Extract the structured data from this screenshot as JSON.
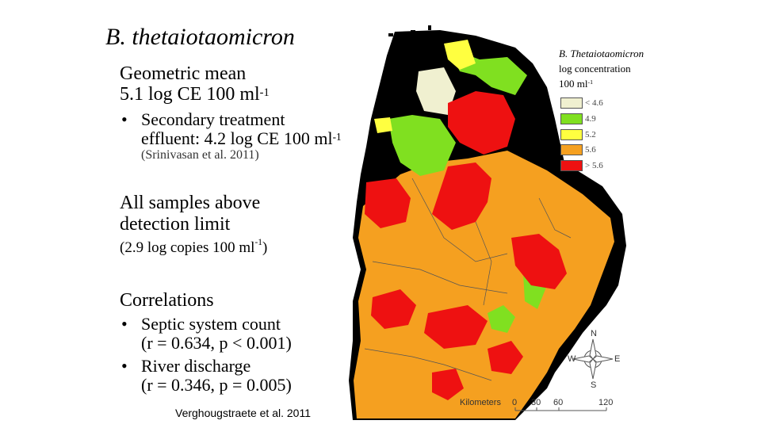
{
  "title": "B. thetaiotaomicron",
  "geomean": {
    "line1": "Geometric mean",
    "line2_pre": "5.1 log CE 100 ml",
    "line2_sup": "-1"
  },
  "secondary": {
    "bullet": "•",
    "line1": "Secondary treatment",
    "line2_pre": "effluent: 4.2 log CE 100 ml",
    "line2_sup": "-1",
    "ref": "(Srinivasan et al. 2011)"
  },
  "detection": {
    "line1": "All samples above",
    "line2": "detection limit",
    "note_pre": "(2.9 log copies 100 ml",
    "note_sup": "-1",
    "note_post": ")"
  },
  "correlations": {
    "heading": "Correlations",
    "items": [
      {
        "bullet": "•",
        "label": "Septic system count",
        "stat": "(r = 0.634, p < 0.001)"
      },
      {
        "bullet": "•",
        "label": "River discharge",
        "stat": "(r = 0.346, p = 0.005)"
      }
    ]
  },
  "citation": "Verghougstraete et al. 2011",
  "legend": {
    "title_line1": "B. Thetaiotaomicron",
    "title_line2": "log concentration",
    "title_line3_pre": "100 ml",
    "title_line3_sup": "-1",
    "items": [
      {
        "label": "< 4.6",
        "color": "#f0f0d0"
      },
      {
        "label": "4.9",
        "color": "#80e020"
      },
      {
        "label": "5.2",
        "color": "#ffff40"
      },
      {
        "label": "5.6",
        "color": "#f5a020"
      },
      {
        "label": "> 5.6",
        "color": "#ee1111"
      }
    ]
  },
  "scale": {
    "label": "Kilometers",
    "ticks": [
      "0",
      "30",
      "60",
      "120"
    ]
  },
  "compass": {
    "n": "N",
    "s": "S",
    "e": "E",
    "w": "W"
  }
}
